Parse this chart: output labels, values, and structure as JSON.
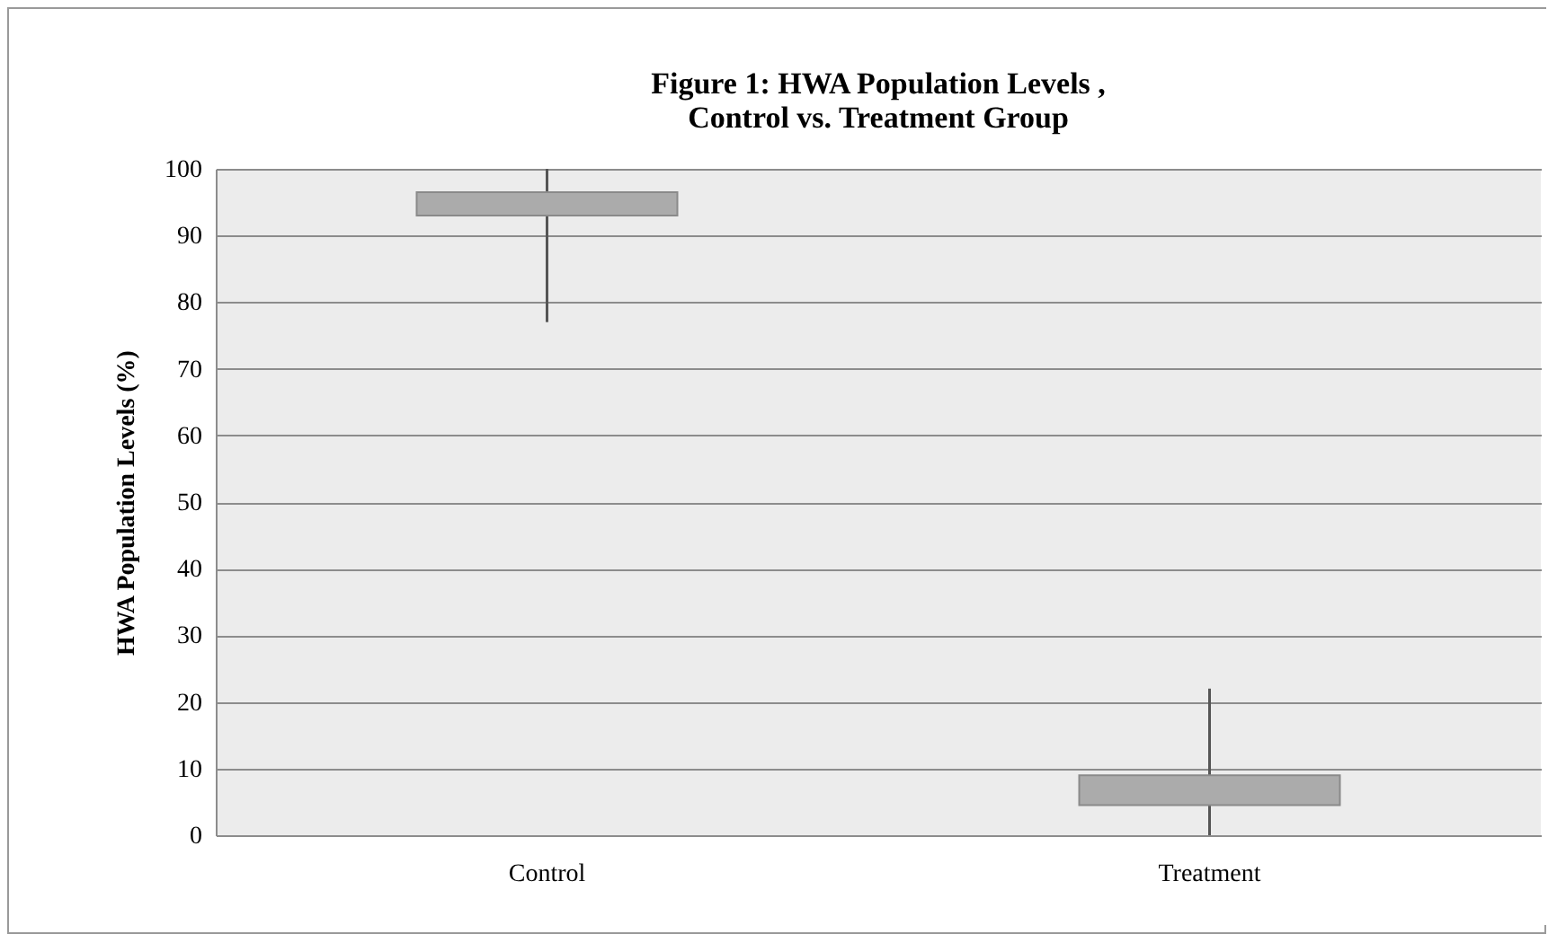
{
  "chart_data": {
    "type": "candlestick",
    "title": "Figure 1: HWA Population Levels ,\nControl vs. Treatment Group",
    "ylabel": "HWA Population Levels (%)",
    "categories": [
      "Control",
      "Treatment"
    ],
    "ohlc": [
      [
        93,
        100,
        77,
        96.5
      ],
      [
        4.5,
        22,
        0,
        9
      ]
    ],
    "colors": [
      "#ababab",
      "#ababab"
    ],
    "ylim": [
      0,
      100
    ],
    "yticks": [
      0,
      10,
      20,
      30,
      40,
      50,
      60,
      70,
      80,
      90,
      100
    ],
    "grid": true
  }
}
